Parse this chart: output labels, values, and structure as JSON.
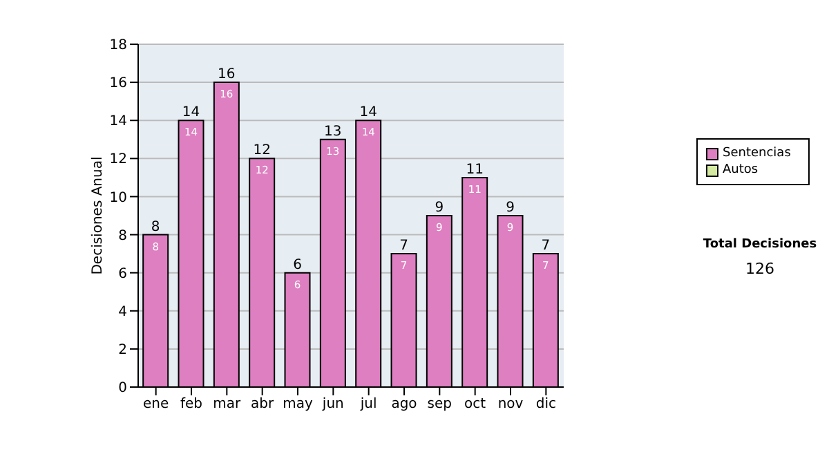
{
  "chart_data": {
    "type": "bar",
    "stacked": true,
    "ylabel": "Decisiones Anual",
    "categories": [
      "ene",
      "feb",
      "mar",
      "abr",
      "may",
      "jun",
      "jul",
      "ago",
      "sep",
      "oct",
      "nov",
      "dic"
    ],
    "series": [
      {
        "name": "Sentencias",
        "color": "#dd7fc0",
        "values": [
          8,
          14,
          16,
          12,
          6,
          13,
          14,
          7,
          9,
          11,
          9,
          7
        ],
        "value_labels": [
          "8",
          "14",
          "16",
          "12",
          "6",
          "13",
          "14",
          "7",
          "9",
          "11",
          "9",
          "7"
        ]
      },
      {
        "name": "Autos",
        "color": "#d4eaa0",
        "values": [
          0,
          0,
          0,
          0,
          0,
          0,
          0,
          0,
          0,
          0,
          0,
          0
        ]
      }
    ],
    "totals": [
      "8",
      "14",
      "16",
      "12",
      "6",
      "13",
      "14",
      "7",
      "9",
      "11",
      "9",
      "7"
    ],
    "ylim": [
      0,
      18
    ],
    "yticks": [
      0,
      2,
      4,
      6,
      8,
      10,
      12,
      14,
      16,
      18
    ],
    "grid": "y",
    "legend": "right",
    "annotations": [
      "Total Decisiones",
      "126"
    ]
  }
}
